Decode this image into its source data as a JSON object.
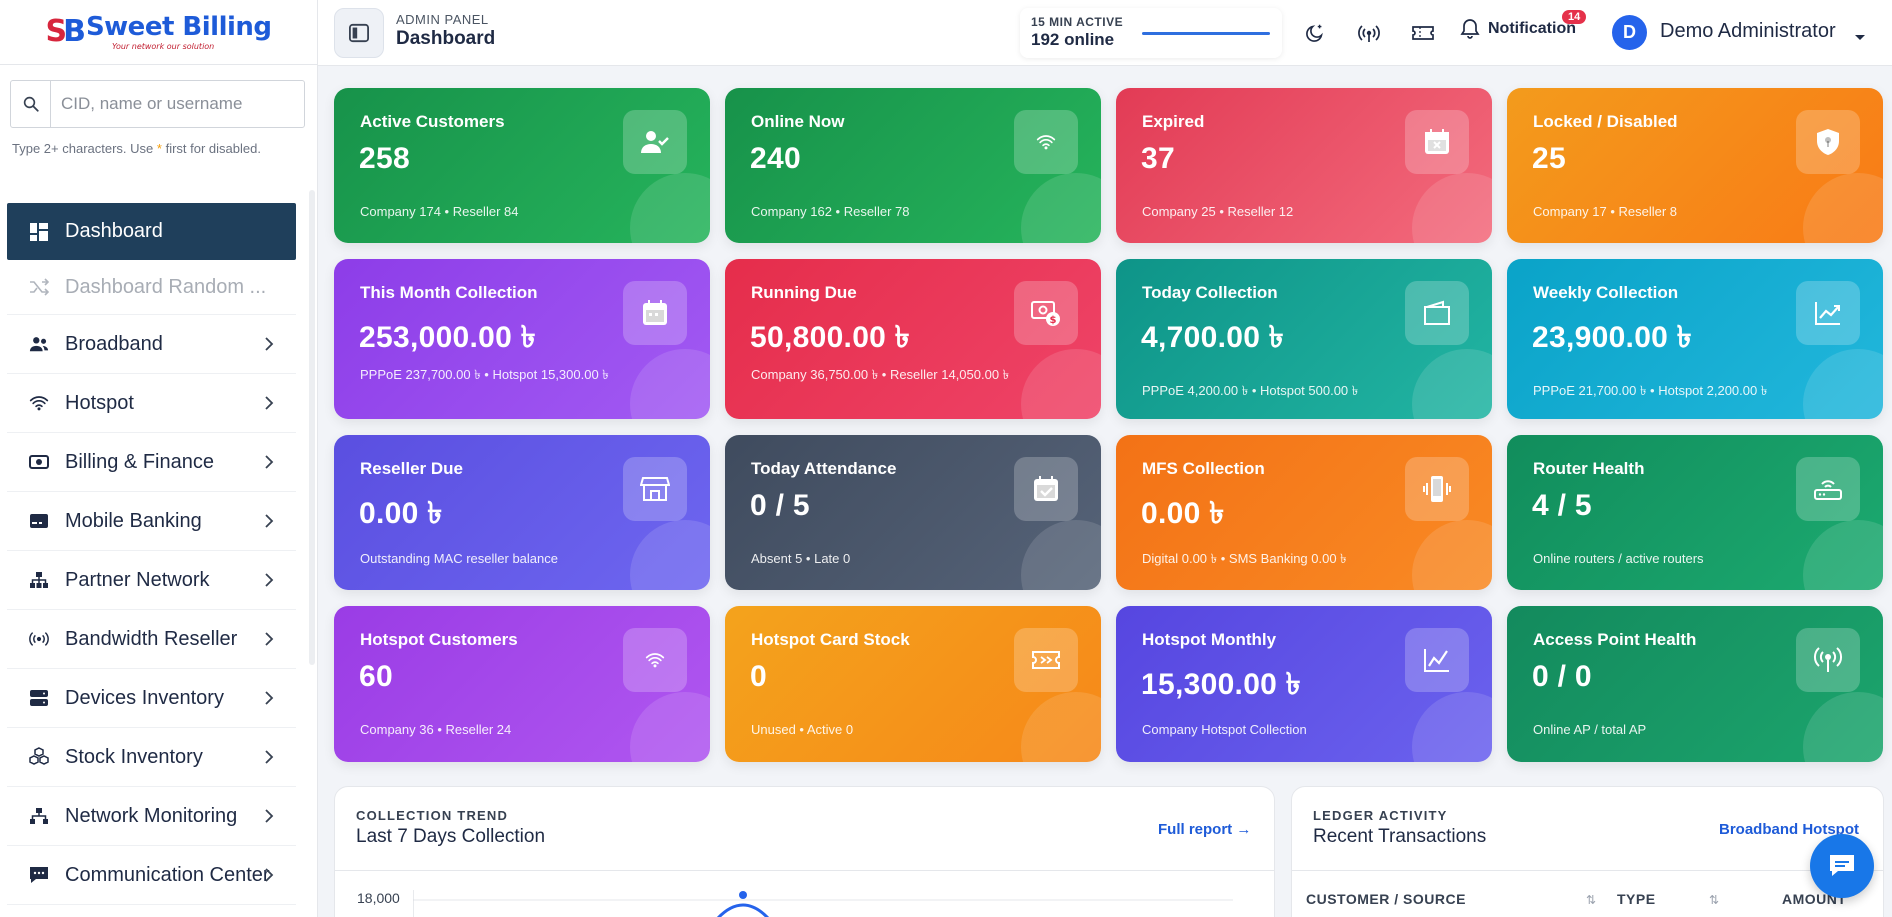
{
  "brand": {
    "mark": "SB",
    "name": "Sweet Billing",
    "tagline": "Your network our solution"
  },
  "search": {
    "placeholder": "CID, name or username",
    "hint_pre": "Type 2+ characters. Use",
    "hint_symbol": "*",
    "hint_post": "first for disabled."
  },
  "sidebar": {
    "items": [
      {
        "label": "Dashboard",
        "icon": "dashboard-grid-icon",
        "active": true
      },
      {
        "label": "Dashboard Random ...",
        "icon": "shuffle-icon",
        "ghost": true
      },
      {
        "label": "Broadband",
        "icon": "users-icon"
      },
      {
        "label": "Hotspot",
        "icon": "wifi-icon"
      },
      {
        "label": "Billing & Finance",
        "icon": "money-icon"
      },
      {
        "label": "Mobile Banking",
        "icon": "card-icon"
      },
      {
        "label": "Partner Network",
        "icon": "sitemap-icon"
      },
      {
        "label": "Bandwidth Reseller",
        "icon": "broadcast-icon"
      },
      {
        "label": "Devices Inventory",
        "icon": "server-icon"
      },
      {
        "label": "Stock Inventory",
        "icon": "cubes-icon"
      },
      {
        "label": "Network Monitoring",
        "icon": "network-icon"
      },
      {
        "label": "Communication Center",
        "icon": "chat-icon"
      }
    ]
  },
  "header": {
    "panel_label": "ADMIN PANEL",
    "page_title": "Dashboard",
    "active_label": "15 MIN ACTIVE",
    "active_value": "192 online",
    "notification_label": "Notification",
    "notification_count": "14",
    "user_initial": "D",
    "user_name": "Demo Administrator"
  },
  "cards": [
    {
      "title": "Active Customers",
      "value": "258",
      "sub": "Company 174 • Reseller 84",
      "icon": "user-check-icon",
      "theme": "g-green"
    },
    {
      "title": "Online Now",
      "value": "240",
      "sub": "Company 162 • Reseller 78",
      "icon": "wifi-icon",
      "theme": "g-green"
    },
    {
      "title": "Expired",
      "value": "37",
      "sub": "Company 25 • Reseller 12",
      "icon": "calendar-x-icon",
      "theme": "g-red"
    },
    {
      "title": "Locked / Disabled",
      "value": "25",
      "sub": "Company 17 • Reseller 8",
      "icon": "shield-lock-icon",
      "theme": "g-orange"
    },
    {
      "title": "This Month Collection",
      "value": "253,000.00 ৳",
      "sub": "PPPoE 237,700.00 ৳ • Hotspot 15,300.00 ৳",
      "icon": "calendar-icon",
      "theme": "g-purple"
    },
    {
      "title": "Running Due",
      "value": "50,800.00 ৳",
      "sub": "Company 36,750.00 ৳ • Reseller 14,050.00 ৳",
      "icon": "money-due-icon",
      "theme": "g-crimson"
    },
    {
      "title": "Today Collection",
      "value": "4,700.00 ৳",
      "sub": "PPPoE 4,200.00 ৳ • Hotspot 500.00 ৳",
      "icon": "wallet-icon",
      "theme": "g-teal"
    },
    {
      "title": "Weekly Collection",
      "value": "23,900.00 ৳",
      "sub": "PPPoE 21,700.00 ৳ • Hotspot 2,200.00 ৳",
      "icon": "trend-up-icon",
      "theme": "g-cyan"
    },
    {
      "title": "Reseller Due",
      "value": "0.00 ৳",
      "sub": "Outstanding MAC reseller balance",
      "icon": "store-icon",
      "theme": "g-indigo"
    },
    {
      "title": "Today Attendance",
      "value": "0 / 5",
      "sub": "Absent 5 • Late 0",
      "icon": "calendar-check-icon",
      "theme": "g-slate"
    },
    {
      "title": "MFS Collection",
      "value": "0.00 ৳",
      "sub": "Digital 0.00 ৳ • SMS Banking 0.00 ৳",
      "icon": "mobile-vibrate-icon",
      "theme": "g-orange2"
    },
    {
      "title": "Router Health",
      "value": "4 / 5",
      "sub": "Online routers / active routers",
      "icon": "router-icon",
      "theme": "g-emerald"
    },
    {
      "title": "Hotspot Customers",
      "value": "60",
      "sub": "Company 36 • Reseller 24",
      "icon": "wifi-icon",
      "theme": "g-violet"
    },
    {
      "title": "Hotspot Card Stock",
      "value": "0",
      "sub": "Unused • Active 0",
      "icon": "ticket-icon",
      "theme": "g-amber"
    },
    {
      "title": "Hotspot Monthly",
      "value": "15,300.00 ৳",
      "sub": "Company Hotspot Collection",
      "icon": "line-chart-icon",
      "theme": "g-blueviolet"
    },
    {
      "title": "Access Point Health",
      "value": "0 / 0",
      "sub": "Online AP / total AP",
      "icon": "access-point-icon",
      "theme": "g-green2"
    }
  ],
  "collection": {
    "label": "COLLECTION TREND",
    "title": "Last 7 Days Collection",
    "link": "Full report →",
    "y_top": "18,000"
  },
  "ledger": {
    "label": "LEDGER ACTIVITY",
    "title": "Recent Transactions",
    "link": "Broadband Hotspot",
    "columns": [
      "CUSTOMER / SOURCE",
      "TYPE",
      "AMOUNT"
    ]
  }
}
